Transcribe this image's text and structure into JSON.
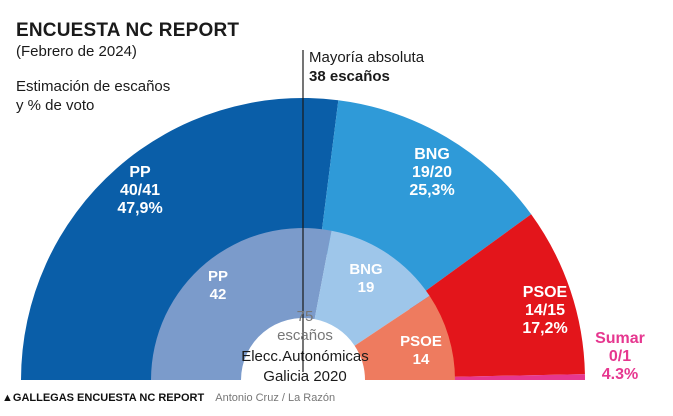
{
  "header": {
    "title": "ENCUESTA NC REPORT",
    "subtitle": "(Febrero de 2024)",
    "description_line1": "Estimación de escaños",
    "description_line2": "y % de voto"
  },
  "majority": {
    "label": "Mayoría absoluta",
    "value": "38 escaños"
  },
  "center": {
    "total": "75",
    "total_unit": "escaños",
    "inner_caption_line1": "Elecc.Autonómicas",
    "inner_caption_line2": "Galicia 2020"
  },
  "footer": {
    "source": "▲GALLEGAS ENCUESTA NC REPORT",
    "credit": "Antonio Cruz / La Razón"
  },
  "chart_data": [
    {
      "type": "pie",
      "variant": "half-donut",
      "series": [
        {
          "name": "PP",
          "seats": 40.5,
          "seats_label": "40/41",
          "vote_label": "47,9%",
          "color": "#0a5ea8"
        },
        {
          "name": "BNG",
          "seats": 19.5,
          "seats_label": "19/20",
          "vote_label": "25,3%",
          "color": "#2f9ad8"
        },
        {
          "name": "PSOE",
          "seats": 14.5,
          "seats_label": "14/15",
          "vote_label": "17,2%",
          "color": "#e3151b"
        },
        {
          "name": "Sumar",
          "seats": 0.5,
          "seats_label": "0/1",
          "vote_label": "4.3%",
          "color": "#e6378f"
        }
      ],
      "total": 75,
      "majority": 38
    },
    {
      "type": "pie",
      "variant": "half-donut",
      "series": [
        {
          "name": "PP",
          "seats": 42,
          "seats_label": "42",
          "color": "#7b9bcb"
        },
        {
          "name": "BNG",
          "seats": 19,
          "seats_label": "19",
          "color": "#9ec6ea"
        },
        {
          "name": "PSOE",
          "seats": 14,
          "seats_label": "14",
          "color": "#ee7b5f"
        }
      ],
      "total": 75
    }
  ]
}
